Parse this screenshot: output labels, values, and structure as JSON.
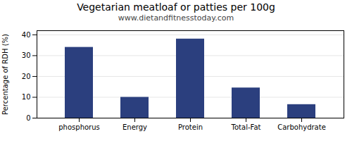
{
  "chart_data": {
    "type": "bar",
    "title": "Vegetarian meatloaf or patties per 100g",
    "subtitle": "www.dietandfitnesstoday.com",
    "ylabel": "Percentage of RDH (%)",
    "categories": [
      "phosphorus",
      "Energy",
      "Protein",
      "Total-Fat",
      "Carbohydrate"
    ],
    "values": [
      34,
      10,
      38,
      14.5,
      6.5
    ],
    "color": "#2b3f7e",
    "ylim": [
      0,
      42
    ],
    "yticks": [
      0,
      10,
      20,
      30,
      40
    ],
    "grid": true
  }
}
